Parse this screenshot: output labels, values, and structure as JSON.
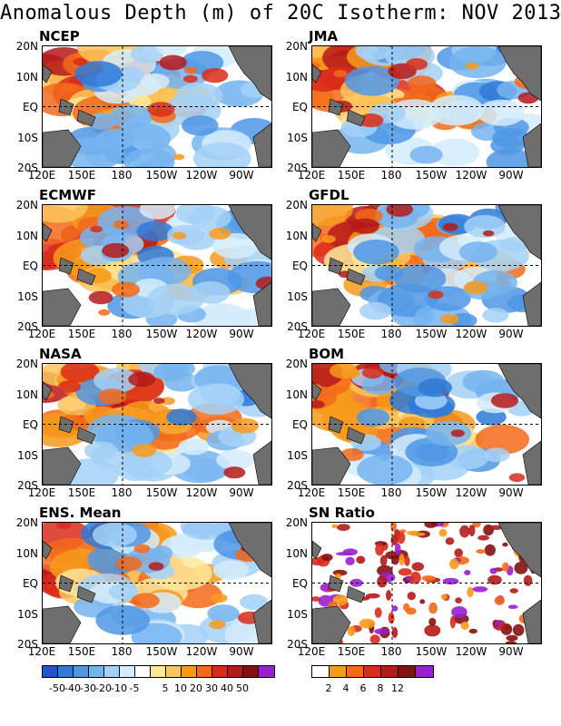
{
  "title": "Anomalous Depth (m) of 20C Isotherm: NOV 2013",
  "panels": [
    {
      "label": "NCEP",
      "kind": "anom"
    },
    {
      "label": "JMA",
      "kind": "anom"
    },
    {
      "label": "ECMWF",
      "kind": "anom"
    },
    {
      "label": "GFDL",
      "kind": "anom"
    },
    {
      "label": "NASA",
      "kind": "anom"
    },
    {
      "label": "BOM",
      "kind": "anom"
    },
    {
      "label": "ENS. Mean",
      "kind": "anom"
    },
    {
      "label": "SN Ratio",
      "kind": "ratio"
    }
  ],
  "axes": {
    "lat_labels": [
      "20N",
      "10N",
      "EQ",
      "10S",
      "20S"
    ],
    "lon_labels": [
      "120E",
      "150E",
      "180",
      "150W",
      "120W",
      "90W"
    ]
  },
  "colorbar_anom": {
    "colors": [
      "#1f55c8",
      "#2f7ad8",
      "#4f97e5",
      "#76b4f0",
      "#a5d1f7",
      "#d4ecfc",
      "#ffffff",
      "#fde79a",
      "#fcc45a",
      "#f79a1c",
      "#f26a1a",
      "#d92b1a",
      "#b51a1a",
      "#851010",
      "#9a1fcf"
    ],
    "tick_labels": [
      "-50",
      "-40",
      "-30",
      "-20",
      "-10",
      "-5",
      "5",
      "10",
      "20",
      "30",
      "40",
      "50"
    ]
  },
  "colorbar_ratio": {
    "colors": [
      "#ffffff",
      "#f79a1c",
      "#f26a1a",
      "#d92b1a",
      "#b51a1a",
      "#851010",
      "#9a1fcf"
    ],
    "tick_labels": [
      "2",
      "4",
      "6",
      "8",
      "12"
    ]
  },
  "colors": {
    "land": "#6e6e6e",
    "frame": "#000000"
  }
}
